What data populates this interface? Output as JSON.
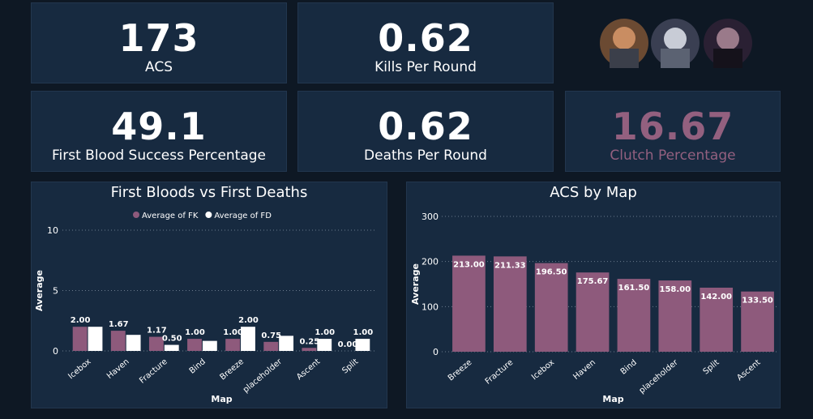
{
  "cards": [
    {
      "value": 173,
      "label": "ACS"
    },
    {
      "value": 0.62,
      "label": "Kills Per Round"
    },
    {
      "value": 49.1,
      "label": "First Blood Success Percentage"
    },
    {
      "value": 0.62,
      "label": "Deaths Per Round"
    },
    {
      "value": 16.67,
      "label": "Clutch Percentage"
    }
  ],
  "chart_data": [
    {
      "type": "bar",
      "title": "First Bloods vs First Deaths",
      "x_label": "Map",
      "y_label": "Average",
      "categories": [
        "Icebox",
        "Haven",
        "Fracture",
        "Bind",
        "Breeze",
        "placeholder",
        "Ascent",
        "Split"
      ],
      "series": [
        {
          "name": "Average of FK",
          "color": "#8e5a7c",
          "values": [
            2,
            1.67,
            1.17,
            1,
            1,
            0.75,
            0.25,
            0
          ],
          "value_labels": [
            "2.00",
            "1.67",
            "1.17",
            "1.00",
            "1.00",
            "0.75",
            "0.25",
            "0.00"
          ]
        },
        {
          "name": "Average of FD",
          "color": "#ffffff",
          "values": [
            2,
            1.33,
            0.5,
            0.83,
            2,
            1.25,
            1,
            1
          ],
          "value_labels": [
            null,
            null,
            "0.50",
            null,
            "2.00",
            null,
            "1.00",
            "1.00"
          ]
        }
      ],
      "ylim": [
        0,
        10
      ],
      "yticks": [
        0,
        5,
        10
      ],
      "grid": true,
      "legend": "top"
    },
    {
      "type": "bar",
      "title": "ACS by Map",
      "x_label": "Map",
      "y_label": "Average",
      "categories": [
        "Breeze",
        "Fracture",
        "Icebox",
        "Haven",
        "Bind",
        "placeholder",
        "Split",
        "Ascent"
      ],
      "values": [
        213,
        211.33,
        196.5,
        175.67,
        161.5,
        158,
        142,
        133.5
      ],
      "value_labels": [
        "213.00",
        "211.33",
        "196.50",
        "175.67",
        "161.50",
        "158.00",
        "142.00",
        "133.50"
      ],
      "color": "#8e5a7c",
      "ylim": [
        0,
        300
      ],
      "yticks": [
        0,
        100,
        200,
        300
      ],
      "grid": true
    }
  ]
}
